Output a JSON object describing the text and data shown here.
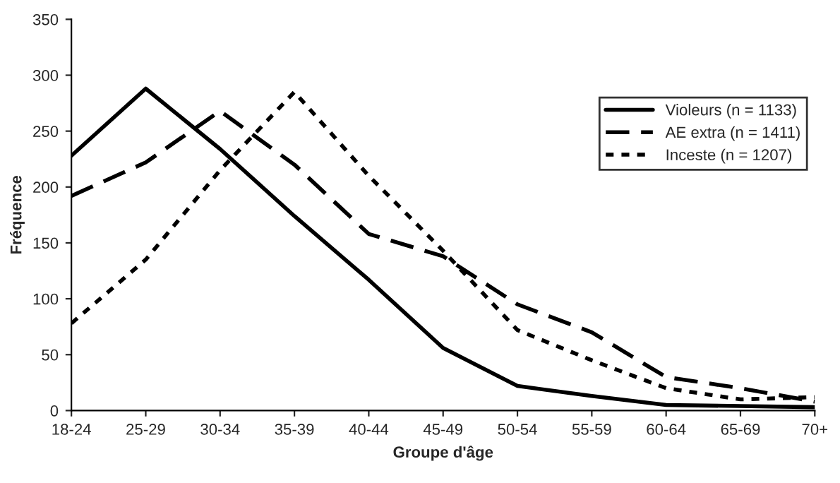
{
  "chart_data": {
    "type": "line",
    "xlabel": "Groupe d'âge",
    "ylabel": "Fréquence",
    "categories": [
      "18-24",
      "25-29",
      "30-34",
      "35-39",
      "40-44",
      "45-49",
      "50-54",
      "55-59",
      "60-64",
      "65-69",
      "70+"
    ],
    "series": [
      {
        "name": "Violeurs (n = 1133)",
        "color": "#000000",
        "line_style": "solid",
        "values": [
          228,
          288,
          234,
          174,
          117,
          56,
          22,
          13,
          5,
          4,
          3
        ]
      },
      {
        "name": "AE extra (n = 1411)",
        "color": "#000000",
        "line_style": "dashed",
        "values": [
          192,
          222,
          268,
          220,
          158,
          138,
          95,
          70,
          30,
          20,
          8
        ]
      },
      {
        "name": "Inceste (n = 1207)",
        "color": "#000000",
        "line_style": "dotted",
        "values": [
          78,
          135,
          215,
          285,
          210,
          143,
          72,
          45,
          20,
          10,
          12
        ]
      }
    ],
    "ylim": [
      0,
      350
    ],
    "yticks": [
      0,
      50,
      100,
      150,
      200,
      250,
      300,
      350
    ],
    "grid": false,
    "legend": "top right",
    "marker": "none"
  }
}
